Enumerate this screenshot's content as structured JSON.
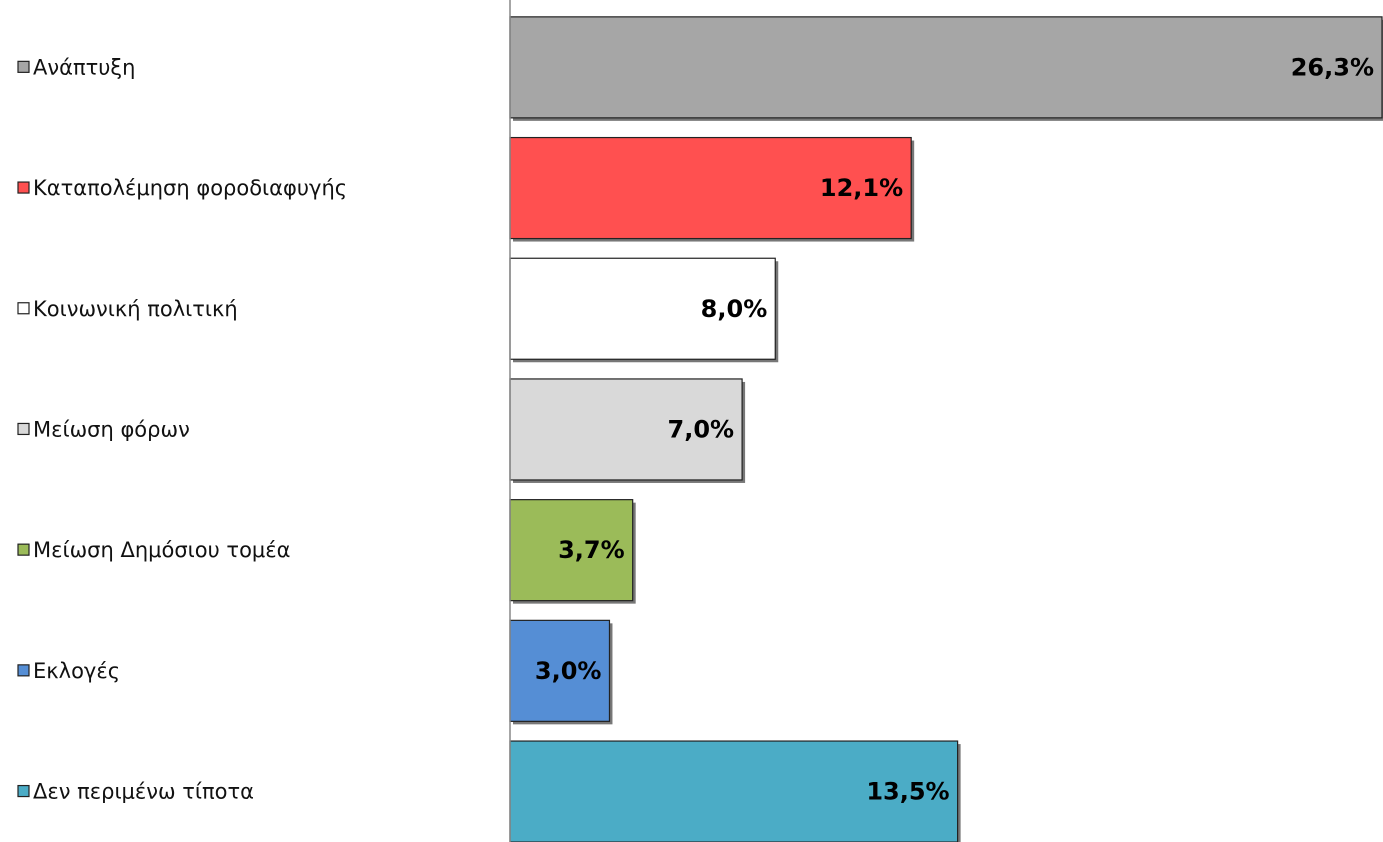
{
  "chart_data": {
    "type": "bar",
    "orientation": "horizontal",
    "categories": [
      "Ανάπτυξη",
      "Καταπολέμηση φοροδιαφυγής",
      "Κοινωνική πολιτική",
      "Μείωση φόρων",
      "Μείωση Δημόσιου τομέα",
      "Εκλογές",
      "Δεν περιμένω τίποτα"
    ],
    "values": [
      26.3,
      12.1,
      8.0,
      7.0,
      3.7,
      3.0,
      13.5
    ],
    "value_labels": [
      "26,3%",
      "12,1%",
      "8,0%",
      "7,0%",
      "3,7%",
      "3,0%",
      "13,5%"
    ],
    "colors": [
      "#a6a6a6",
      "#ff5050",
      "#ffffff",
      "#d9d9d9",
      "#9bbb59",
      "#558ed5",
      "#4bacc6"
    ]
  }
}
